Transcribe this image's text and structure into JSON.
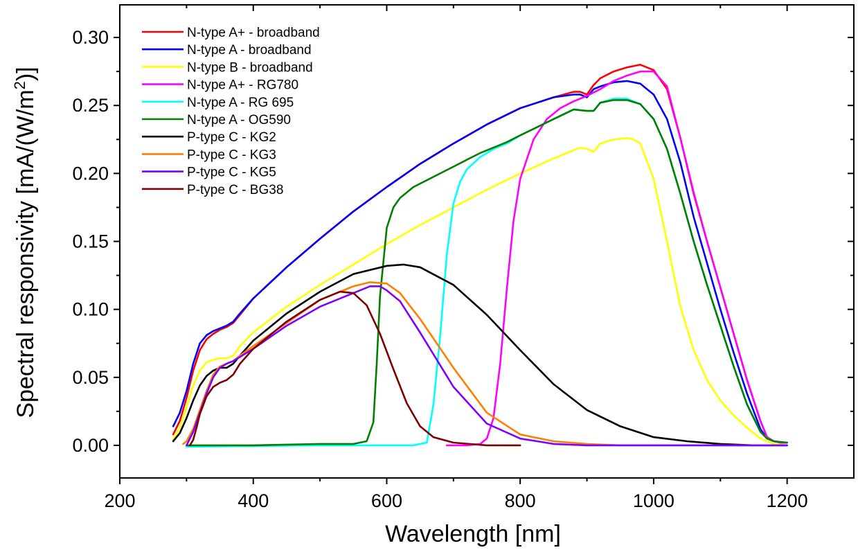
{
  "chart_data": {
    "type": "line",
    "xlabel": "Wavelength [nm]",
    "ylabel_main": "Spectral responsivity [mA/(W/m",
    "ylabel_sup": "2",
    "ylabel_end": ")]",
    "xlim": [
      200,
      1300
    ],
    "ylim": [
      -0.024,
      0.324
    ],
    "x_ticks": [
      200,
      400,
      600,
      800,
      1000,
      1200
    ],
    "x_tick_labels": [
      "200",
      "400",
      "600",
      "800",
      "1000",
      "1200"
    ],
    "y_ticks": [
      0.0,
      0.05,
      0.1,
      0.15,
      0.2,
      0.25,
      0.3
    ],
    "y_tick_labels": [
      "0.00",
      "0.05",
      "0.10",
      "0.15",
      "0.20",
      "0.25",
      "0.30"
    ],
    "grid": false,
    "legend_position": "top-left",
    "series": [
      {
        "name": "N-type A+ - broadband",
        "color": "#ff0000",
        "x": [
          280,
          290,
          300,
          310,
          320,
          330,
          340,
          350,
          360,
          370,
          380,
          400,
          450,
          500,
          550,
          600,
          650,
          700,
          750,
          800,
          850,
          880,
          890,
          900,
          910,
          920,
          940,
          960,
          980,
          1000,
          1020,
          1040,
          1060,
          1080,
          1100,
          1120,
          1140,
          1160,
          1170,
          1180,
          1190,
          1200
        ],
        "y": [
          0.008,
          0.018,
          0.035,
          0.055,
          0.07,
          0.078,
          0.082,
          0.085,
          0.087,
          0.09,
          0.096,
          0.108,
          0.131,
          0.152,
          0.172,
          0.19,
          0.207,
          0.222,
          0.236,
          0.248,
          0.256,
          0.26,
          0.26,
          0.258,
          0.265,
          0.27,
          0.275,
          0.278,
          0.28,
          0.276,
          0.262,
          0.226,
          0.185,
          0.15,
          0.116,
          0.082,
          0.048,
          0.018,
          0.006,
          0.003,
          0.002,
          0.002
        ]
      },
      {
        "name": "N-type A - broadband",
        "color": "#0000ff",
        "x": [
          280,
          290,
          300,
          310,
          320,
          330,
          340,
          350,
          360,
          370,
          380,
          400,
          450,
          500,
          550,
          600,
          650,
          700,
          750,
          800,
          850,
          880,
          890,
          900,
          910,
          920,
          940,
          960,
          980,
          1000,
          1020,
          1040,
          1060,
          1080,
          1100,
          1120,
          1140,
          1160,
          1170,
          1180,
          1190,
          1200
        ],
        "y": [
          0.014,
          0.024,
          0.04,
          0.06,
          0.075,
          0.081,
          0.084,
          0.086,
          0.088,
          0.091,
          0.097,
          0.108,
          0.131,
          0.152,
          0.172,
          0.19,
          0.207,
          0.222,
          0.236,
          0.248,
          0.256,
          0.258,
          0.258,
          0.256,
          0.262,
          0.264,
          0.267,
          0.268,
          0.266,
          0.258,
          0.24,
          0.208,
          0.168,
          0.134,
          0.1,
          0.068,
          0.038,
          0.012,
          0.005,
          0.003,
          0.002,
          0.002
        ]
      },
      {
        "name": "N-type B - broadband",
        "color": "#ffff00",
        "x": [
          280,
          290,
          300,
          310,
          320,
          330,
          340,
          350,
          360,
          370,
          380,
          400,
          450,
          500,
          550,
          600,
          650,
          700,
          750,
          800,
          850,
          890,
          900,
          910,
          920,
          940,
          960,
          970,
          980,
          1000,
          1020,
          1040,
          1060,
          1080,
          1100,
          1120,
          1140,
          1160,
          1180,
          1200
        ],
        "y": [
          0.004,
          0.013,
          0.028,
          0.044,
          0.055,
          0.061,
          0.063,
          0.064,
          0.064,
          0.066,
          0.073,
          0.083,
          0.102,
          0.118,
          0.133,
          0.148,
          0.162,
          0.175,
          0.188,
          0.2,
          0.211,
          0.219,
          0.218,
          0.216,
          0.222,
          0.225,
          0.226,
          0.225,
          0.222,
          0.196,
          0.15,
          0.102,
          0.07,
          0.048,
          0.033,
          0.022,
          0.013,
          0.005,
          0.001,
          0.0
        ]
      },
      {
        "name": "N-type A+ - RG780",
        "color": "#ff00ff",
        "x": [
          690,
          720,
          740,
          750,
          760,
          770,
          780,
          790,
          800,
          820,
          840,
          860,
          880,
          900,
          920,
          940,
          960,
          980,
          1000,
          1020,
          1040,
          1060,
          1080,
          1100,
          1120,
          1140,
          1160,
          1170,
          1180,
          1190,
          1200
        ],
        "y": [
          0.0,
          0.0,
          0.001,
          0.005,
          0.02,
          0.06,
          0.115,
          0.165,
          0.196,
          0.225,
          0.24,
          0.248,
          0.253,
          0.257,
          0.262,
          0.268,
          0.272,
          0.275,
          0.275,
          0.264,
          0.226,
          0.186,
          0.15,
          0.116,
          0.082,
          0.048,
          0.018,
          0.006,
          0.003,
          0.002,
          0.002
        ]
      },
      {
        "name": "N-type A - RG 695",
        "color": "#00ffff",
        "x": [
          300,
          400,
          500,
          600,
          640,
          660,
          670,
          680,
          690,
          700,
          710,
          720,
          740,
          760,
          780,
          800,
          850,
          880,
          900,
          910,
          920,
          940,
          960,
          980,
          1000,
          1020,
          1040,
          1060,
          1080,
          1100,
          1120,
          1140,
          1160,
          1170,
          1180,
          1200
        ],
        "y": [
          -0.001,
          -0.0005,
          0.0,
          0.0,
          0.0,
          0.002,
          0.03,
          0.08,
          0.14,
          0.178,
          0.194,
          0.203,
          0.212,
          0.218,
          0.222,
          0.228,
          0.24,
          0.247,
          0.246,
          0.246,
          0.252,
          0.255,
          0.255,
          0.251,
          0.24,
          0.218,
          0.185,
          0.15,
          0.118,
          0.088,
          0.058,
          0.03,
          0.01,
          0.005,
          0.003,
          0.002
        ]
      },
      {
        "name": "N-type A - OG590",
        "color": "#007f00",
        "x": [
          300,
          400,
          500,
          550,
          570,
          580,
          585,
          590,
          600,
          610,
          620,
          640,
          660,
          680,
          700,
          720,
          740,
          760,
          780,
          800,
          850,
          880,
          900,
          910,
          920,
          940,
          960,
          980,
          1000,
          1020,
          1040,
          1060,
          1080,
          1100,
          1120,
          1140,
          1160,
          1170,
          1180,
          1200
        ],
        "y": [
          0.0,
          0.0,
          0.001,
          0.001,
          0.003,
          0.017,
          0.06,
          0.11,
          0.16,
          0.175,
          0.182,
          0.19,
          0.195,
          0.2,
          0.205,
          0.21,
          0.215,
          0.219,
          0.223,
          0.228,
          0.24,
          0.247,
          0.246,
          0.246,
          0.252,
          0.254,
          0.254,
          0.251,
          0.24,
          0.218,
          0.185,
          0.15,
          0.118,
          0.088,
          0.058,
          0.03,
          0.01,
          0.005,
          0.003,
          0.002
        ]
      },
      {
        "name": "P-type C - KG2",
        "color": "#000000",
        "x": [
          280,
          290,
          300,
          310,
          320,
          330,
          340,
          350,
          360,
          370,
          380,
          400,
          450,
          500,
          550,
          600,
          625,
          650,
          700,
          750,
          800,
          850,
          900,
          950,
          1000,
          1050,
          1100,
          1150,
          1200
        ],
        "y": [
          0.003,
          0.009,
          0.02,
          0.033,
          0.044,
          0.051,
          0.055,
          0.057,
          0.057,
          0.06,
          0.066,
          0.077,
          0.097,
          0.113,
          0.126,
          0.132,
          0.133,
          0.131,
          0.118,
          0.096,
          0.07,
          0.045,
          0.026,
          0.014,
          0.006,
          0.003,
          0.001,
          0.0,
          0.0
        ]
      },
      {
        "name": "P-type C - KG3",
        "color": "#ff7f00",
        "x": [
          295,
          300,
          310,
          320,
          330,
          340,
          350,
          360,
          370,
          380,
          400,
          450,
          500,
          550,
          575,
          600,
          620,
          650,
          700,
          750,
          800,
          850,
          900,
          950,
          1000,
          1200
        ],
        "y": [
          0.001,
          0.003,
          0.012,
          0.026,
          0.04,
          0.052,
          0.058,
          0.06,
          0.062,
          0.066,
          0.073,
          0.09,
          0.107,
          0.117,
          0.12,
          0.119,
          0.112,
          0.093,
          0.057,
          0.024,
          0.008,
          0.003,
          0.001,
          0.0,
          0.0,
          0.0
        ]
      },
      {
        "name": "P-type C - KG5",
        "color": "#7f00ff",
        "x": [
          300,
          310,
          320,
          330,
          340,
          350,
          360,
          370,
          380,
          400,
          450,
          500,
          550,
          575,
          590,
          600,
          620,
          650,
          700,
          750,
          800,
          850,
          900,
          1000,
          1200
        ],
        "y": [
          0.0,
          0.01,
          0.024,
          0.038,
          0.05,
          0.057,
          0.06,
          0.062,
          0.065,
          0.071,
          0.088,
          0.102,
          0.112,
          0.117,
          0.117,
          0.114,
          0.106,
          0.083,
          0.043,
          0.016,
          0.005,
          0.001,
          0.0,
          0.0,
          0.0
        ]
      },
      {
        "name": "P-type C - BG38",
        "color": "#7f0000",
        "x": [
          305,
          310,
          315,
          320,
          330,
          340,
          350,
          360,
          370,
          380,
          400,
          450,
          500,
          530,
          550,
          570,
          590,
          610,
          630,
          650,
          670,
          700,
          750,
          800
        ],
        "y": [
          0.0,
          0.004,
          0.013,
          0.023,
          0.036,
          0.043,
          0.046,
          0.048,
          0.052,
          0.06,
          0.071,
          0.091,
          0.107,
          0.113,
          0.112,
          0.103,
          0.082,
          0.056,
          0.031,
          0.014,
          0.006,
          0.002,
          0.0,
          0.0
        ]
      }
    ]
  }
}
